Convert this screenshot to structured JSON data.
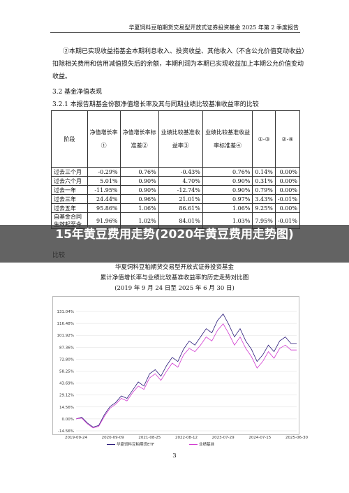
{
  "header": {
    "title": "华夏饲料豆粕期货交易型开放式证券投资基金 2025 年第 2 季度报告"
  },
  "paragraphs": [
    "②本期已实现收益指基金本期利息收入、投资收益、其他收入（不含公允价值变动收益）",
    "扣除相关费用和信用减值损失后的余额，本期利润为本期已实现收益加上本期公允价值变动",
    "收益。"
  ],
  "section": "3.2  基金净值表现",
  "subsection": "3.2.1  本报告期基金份额净值增长率及其与同期业绩比较基准收益率的比较",
  "table": {
    "header": [
      "阶段",
      "净值增长率①",
      "净值增长率标准差②",
      "业绩比较基准收益率③",
      "业绩比较基准收益率标准差④",
      "①-③",
      "②-④"
    ],
    "rows": [
      [
        "过去三个月",
        "-0.29%",
        "0.76%",
        "-0.43%",
        "0.76%",
        "0.14%",
        "0.00%"
      ],
      [
        "过去六个月",
        "5.01%",
        "0.90%",
        "4.70%",
        "0.90%",
        "0.31%",
        "0.00%"
      ],
      [
        "过去一年",
        "-11.95%",
        "0.90%",
        "-12.74%",
        "0.90%",
        "0.79%",
        "0.00%"
      ],
      [
        "过去三年",
        "24.44%",
        "0.96%",
        "21.01%",
        "0.97%",
        "3.43%",
        "-0.01%"
      ],
      [
        "过去五年",
        "95.86%",
        "1.06%",
        "86.61%",
        "1.06%",
        "9.25%",
        "0.00%"
      ],
      [
        "自基金合同生效起至今",
        "91.96%",
        "1.02%",
        "84.01%",
        "1.03%",
        "7.95%",
        "-0.01%"
      ]
    ]
  },
  "overlay": {
    "title": "15年黄豆费用走势(2020年黄豆费用走势图)"
  },
  "section_tail": "比较",
  "chart_titles": [
    "华夏饲料豆粕期货交易型开放式证券投资基金",
    "累计净值增长率与业绩比较基准收益率的历史走势对比图",
    "(2019 年 9 月 24 日至 2025 年 6 月 30 日)"
  ],
  "chart_data": {
    "type": "line",
    "x_tick_labels": [
      "2019-09-24",
      "2020-09-09",
      "2021-08-25",
      "2022-08-12",
      "2023-07-29",
      "2024-07-15",
      "2025-06-30"
    ],
    "ylim": [
      -14.56,
      131.04
    ],
    "yticks": [
      {
        "value": -14.56,
        "label": "-14.56%"
      },
      {
        "value": 0,
        "label": "0.00%"
      },
      {
        "value": 14.56,
        "label": "14.56%"
      },
      {
        "value": 29.12,
        "label": "29.12%"
      },
      {
        "value": 43.69,
        "label": "43.69%"
      },
      {
        "value": 58.25,
        "label": "58.25%"
      },
      {
        "value": 72.8,
        "label": "72.80%"
      },
      {
        "value": 87.36,
        "label": "87.36%"
      },
      {
        "value": 101.92,
        "label": "101.92%"
      },
      {
        "value": 116.48,
        "label": "116.48%"
      },
      {
        "value": 131.04,
        "label": "131.04%"
      }
    ],
    "grid": true,
    "series": [
      {
        "name": "华夏饲料豆粕期货ETF",
        "color": "#2a1a7a",
        "values": [
          0,
          2,
          -5,
          -10,
          -8,
          5,
          15,
          20,
          28,
          25,
          35,
          45,
          40,
          55,
          60,
          52,
          65,
          75,
          70,
          85,
          95,
          90,
          100,
          110,
          105,
          120,
          128,
          115,
          100,
          110,
          95,
          85,
          70,
          78,
          90,
          82,
          95,
          100,
          92,
          92
        ]
      },
      {
        "name": "业绩基准",
        "color": "#d23ad0",
        "values": [
          0,
          1,
          -6,
          -11,
          -9,
          3,
          13,
          18,
          25,
          22,
          32,
          40,
          36,
          50,
          55,
          47,
          58,
          68,
          63,
          78,
          86,
          82,
          90,
          100,
          95,
          108,
          116,
          104,
          90,
          100,
          86,
          76,
          62,
          70,
          82,
          74,
          86,
          90,
          84,
          84
        ]
      }
    ]
  },
  "page_number": "3"
}
